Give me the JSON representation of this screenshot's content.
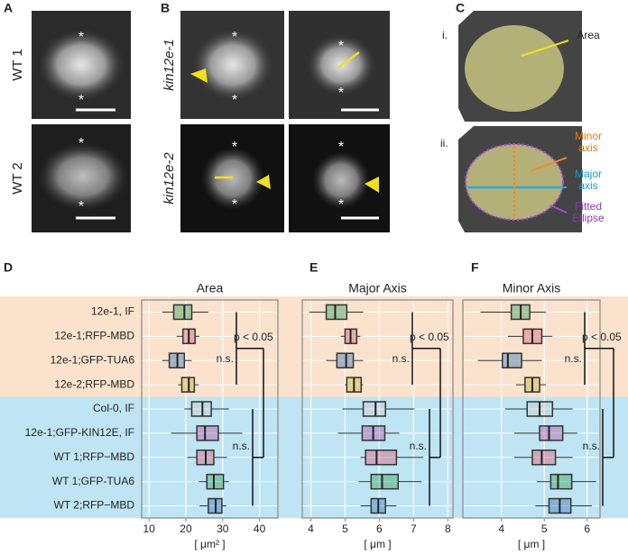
{
  "panels": {
    "labels": [
      "A",
      "B",
      "C",
      "D",
      "E",
      "F"
    ]
  },
  "images": {
    "wt_rows": [
      "WT 1",
      "WT 2"
    ],
    "kin_rows": [
      "kin12e-1",
      "kin12e-2"
    ],
    "c_rows": [
      "i.",
      "ii."
    ],
    "asterisk": "*",
    "annotations": [
      [
        "Area"
      ],
      [
        "Minor",
        "axis"
      ],
      [
        "Major",
        "axis"
      ],
      [
        "Fitted",
        "Ellipse"
      ]
    ]
  },
  "chart_data": [
    {
      "type": "box",
      "title": "Area",
      "x_label": "[ μm² ]",
      "categories": [
        "12e-1, IF",
        "12e-1;RFP-MBD",
        "12e-1;GFP-TUA6",
        "12e-2;RFP-MBD",
        "Col-0, IF",
        "12e-1;GFP-KIN12E, IF",
        "WT 1;RFP−MBD",
        "WT 1;GFP-TUA6",
        "WT 2;RFP−MBD"
      ],
      "colors": [
        "#3aa05a",
        "#d9607a",
        "#3f78b5",
        "#c8b43a",
        "#c9c9c9",
        "#b05aa8",
        "#d9607a",
        "#3aa05a",
        "#3f78b5"
      ],
      "whislo": [
        13.6,
        17.5,
        13.6,
        17.9,
        19.6,
        16,
        20.4,
        23.5,
        23.7
      ],
      "q1": [
        16.7,
        19.2,
        15.5,
        18.9,
        21.6,
        23,
        23,
        25.7,
        26.1
      ],
      "median": [
        19.6,
        20.8,
        17.7,
        20.8,
        24.5,
        25.2,
        25.4,
        27.6,
        28.1
      ],
      "q3": [
        21.6,
        22.5,
        19.6,
        22.3,
        26.9,
        28.8,
        27.6,
        30.2,
        29.8
      ],
      "whishi": [
        26.1,
        23.7,
        21.6,
        23.5,
        31.7,
        35.3,
        31.2,
        31.7,
        31
      ],
      "xlim": [
        8,
        45
      ],
      "xticks": [
        10,
        20,
        30,
        40
      ],
      "grid": true,
      "annotations": [
        "n.s.",
        "p < 0.05",
        "n.s."
      ]
    },
    {
      "type": "box",
      "title": "Major Axis",
      "x_label": "[ μm ]",
      "colors": [
        "#3aa05a",
        "#d9607a",
        "#3f78b5",
        "#c8b43a",
        "#c9c9c9",
        "#b05aa8",
        "#d9607a",
        "#3aa05a",
        "#3f78b5"
      ],
      "whislo": [
        3.95,
        4.87,
        4.45,
        5.0,
        4.92,
        4.79,
        5.45,
        5.39,
        5.45
      ],
      "q1": [
        4.45,
        5.0,
        4.76,
        5.05,
        5.53,
        5.5,
        5.6,
        5.76,
        5.76
      ],
      "median": [
        4.71,
        5.16,
        5.03,
        5.26,
        5.89,
        5.82,
        5.92,
        6.08,
        5.97
      ],
      "q3": [
        5.05,
        5.34,
        5.24,
        5.47,
        6.18,
        6.16,
        6.5,
        6.55,
        6.18
      ],
      "whishi": [
        5.53,
        5.45,
        5.53,
        5.53,
        7.03,
        6.58,
        7.29,
        7.24,
        6.5
      ],
      "xlim": [
        3.75,
        8.15
      ],
      "xticks": [
        4,
        5,
        6,
        7,
        8
      ],
      "grid": true,
      "annotations": [
        "n.s.",
        "p < 0.05",
        "n.s."
      ]
    },
    {
      "type": "box",
      "title": "Minor Axis",
      "x_label": "[ μm ]",
      "colors": [
        "#3aa05a",
        "#d9607a",
        "#3f78b5",
        "#c8b43a",
        "#c9c9c9",
        "#b05aa8",
        "#d9607a",
        "#3aa05a",
        "#3f78b5"
      ],
      "whislo": [
        3.51,
        4.15,
        3.45,
        4.34,
        4.09,
        4.3,
        4.3,
        4.83,
        4.79
      ],
      "q1": [
        4.23,
        4.51,
        4.02,
        4.55,
        4.6,
        4.89,
        4.72,
        5.15,
        5.11
      ],
      "median": [
        4.45,
        4.72,
        4.15,
        4.72,
        4.89,
        5.11,
        4.94,
        5.32,
        5.36
      ],
      "q3": [
        4.66,
        4.94,
        4.47,
        4.89,
        5.19,
        5.43,
        5.26,
        5.64,
        5.62
      ],
      "whishi": [
        5.04,
        5.19,
        4.94,
        5.04,
        5.66,
        5.77,
        5.66,
        6.21,
        6.11
      ],
      "xlim": [
        3.1,
        6.3
      ],
      "xticks": [
        4,
        5,
        6
      ],
      "grid": true,
      "annotations": [
        "n.s.",
        "p < 0.05",
        "n.s."
      ]
    }
  ]
}
